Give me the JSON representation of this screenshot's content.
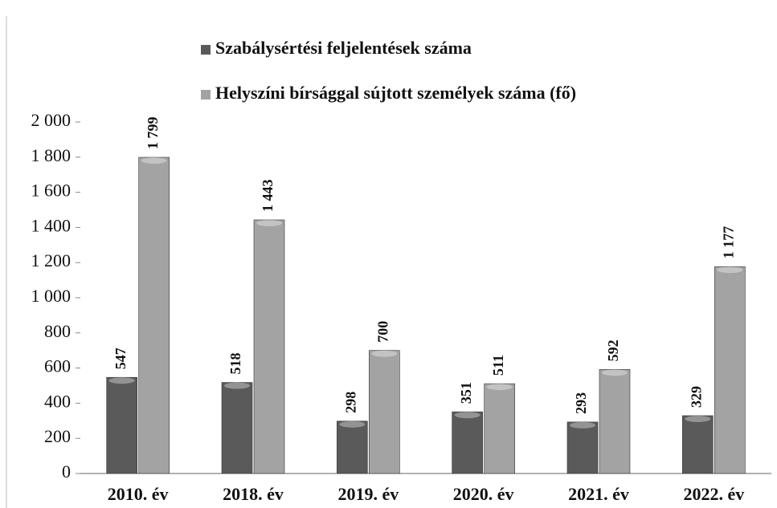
{
  "chart_data": {
    "type": "bar",
    "categories": [
      "2010. év",
      "2018. év",
      "2019. év",
      "2020. év",
      "2021. év",
      "2022. év"
    ],
    "series": [
      {
        "name": "Szabálysértési feljelentések száma",
        "color": "#5a5a5a",
        "values": [
          547,
          518,
          298,
          351,
          293,
          329
        ],
        "value_labels": [
          "547",
          "518",
          "298",
          "351",
          "293",
          "329"
        ]
      },
      {
        "name": "Helyszíni bírsággal sújtott személyek száma (fő)",
        "color": "#a3a3a3",
        "values": [
          1799,
          1443,
          700,
          511,
          592,
          1177
        ],
        "value_labels": [
          "1 799",
          "1 443",
          "700",
          "511",
          "592",
          "1 177"
        ]
      }
    ],
    "ylim": [
      0,
      2000
    ],
    "yticks": [
      0,
      200,
      400,
      600,
      800,
      {
        "value": 1000,
        "label": "1 000"
      },
      {
        "value": 1200,
        "label": "1 200"
      },
      {
        "value": 1400,
        "label": "1 400"
      },
      {
        "value": 1600,
        "label": "1 600"
      },
      {
        "value": 1800,
        "label": "1 800"
      },
      {
        "value": 2000,
        "label": "2 000"
      }
    ],
    "legend": "top"
  }
}
